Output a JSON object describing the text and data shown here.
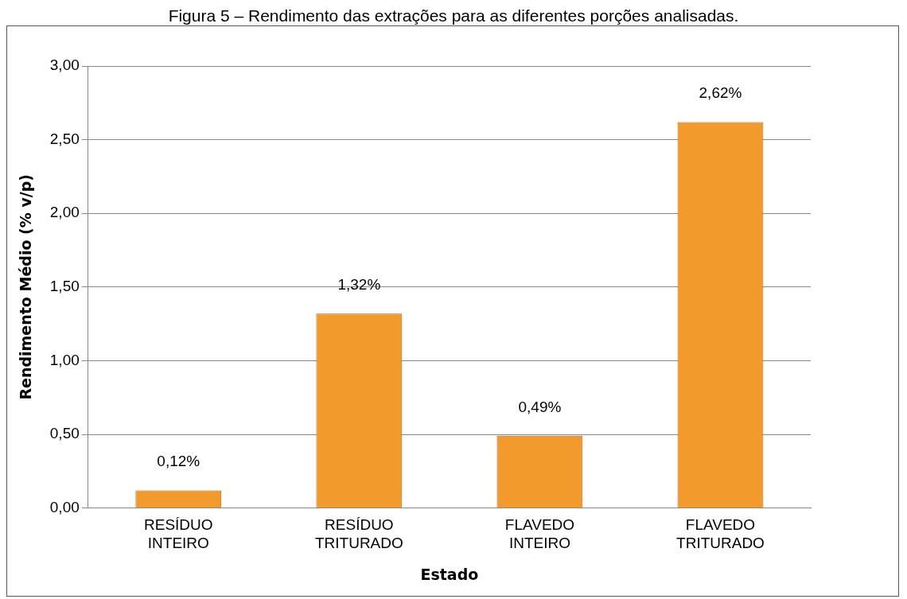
{
  "chart_data": {
    "type": "bar",
    "title": "Figura 5 – Rendimento das extrações para as diferentes porções analisadas.",
    "xlabel": "Estado",
    "ylabel": "Rendimento Médio (% v/p)",
    "categories": [
      "RESÍDUO INTEIRO",
      "RESÍDUO TRITURADO",
      "FLAVEDO INTEIRO",
      "FLAVEDO TRITURADO"
    ],
    "values": [
      0.12,
      1.32,
      0.49,
      2.62
    ],
    "value_labels": [
      "0,12%",
      "1,32%",
      "0,49%",
      "2,62%"
    ],
    "color": "#f39a2c",
    "ylim": [
      0,
      3
    ],
    "yticks": [
      {
        "value": 0,
        "label": "0,00"
      },
      {
        "value": 0.5,
        "label": "0,50"
      },
      {
        "value": 1,
        "label": "1,00"
      },
      {
        "value": 1.5,
        "label": "1,50"
      },
      {
        "value": 2,
        "label": "2,00"
      },
      {
        "value": 2.5,
        "label": "2,50"
      },
      {
        "value": 3,
        "label": "3,00"
      }
    ],
    "grid": "y",
    "legend": false
  }
}
